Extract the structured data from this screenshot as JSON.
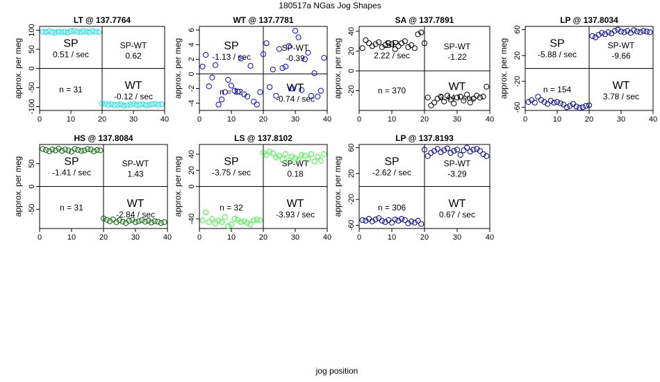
{
  "figure": {
    "title": "180517a   NGas Jog Shapes",
    "xlabel": "jog position",
    "ylabel": "approx. per meg"
  },
  "chart_data": [
    {
      "type": "scatter",
      "title": "LT @ 137.7764",
      "color": "#00e5ee",
      "xlim": [
        0,
        40
      ],
      "ylim": [
        -110,
        110
      ],
      "xticks": [
        0,
        10,
        20,
        30,
        40
      ],
      "yticks": [
        -100,
        -50,
        0,
        50,
        100
      ],
      "ytick_labels": [
        "-100",
        "-50",
        "0",
        "50",
        "100"
      ],
      "quadrants": {
        "sp": {
          "label": "SP",
          "rate": "0.51 / sec"
        },
        "spwt": {
          "label": "SP-WT",
          "value": "0.62"
        },
        "n": "n = 31",
        "wt": {
          "label": "WT",
          "rate": "-0.12 / sec"
        }
      },
      "x": [
        1,
        2,
        3,
        4,
        5,
        6,
        7,
        8,
        9,
        10,
        11,
        12,
        13,
        14,
        15,
        16,
        17,
        18,
        19,
        20,
        21,
        22,
        23,
        24,
        25,
        26,
        27,
        28,
        29,
        30,
        31,
        32,
        33,
        34,
        35,
        36,
        37,
        38,
        39
      ],
      "y": [
        96,
        95,
        97,
        95,
        94,
        96,
        95,
        96,
        94,
        97,
        98,
        96,
        95,
        97,
        96,
        95,
        97,
        96,
        95,
        -92,
        -93,
        -95,
        -94,
        -96,
        -95,
        -94,
        -97,
        -96,
        -95,
        -93,
        -96,
        -95,
        -94,
        -96,
        -95,
        -94,
        -93,
        -95,
        -94
      ]
    },
    {
      "type": "scatter",
      "title": "WT @ 137.7781",
      "color": "#0000ff",
      "xlim": [
        0,
        40
      ],
      "ylim": [
        -5,
        6.5
      ],
      "xticks": [
        0,
        10,
        20,
        30,
        40
      ],
      "yticks": [
        -4,
        -2,
        0,
        2,
        4,
        6
      ],
      "ytick_labels": [
        "-4",
        "-2",
        "0",
        "2",
        "4",
        "6"
      ],
      "quadrants": {
        "sp": {
          "label": "SP",
          "rate": "-1.13 / sec"
        },
        "spwt": {
          "label": "SP-WT",
          "value": "-0.39"
        },
        "n": "n = 32",
        "wt": {
          "label": "WT",
          "rate": "-0.74 / sec"
        }
      },
      "x": [
        1,
        2,
        3,
        4,
        5,
        6,
        7,
        8,
        9,
        10,
        11,
        12,
        13,
        14,
        15,
        16,
        17,
        18,
        19,
        20,
        21,
        22,
        23,
        24,
        25,
        26,
        27,
        28,
        29,
        30,
        31,
        32,
        33,
        34,
        35,
        36,
        37,
        38,
        39
      ],
      "y": [
        1.0,
        2.6,
        -1.7,
        -0.5,
        1.2,
        -4.2,
        -3.5,
        -2.5,
        -0.8,
        -1.6,
        -2.3,
        -2.4,
        2.1,
        -2.8,
        -3.1,
        1.1,
        -3.8,
        -4.2,
        -2.5,
        2.7,
        4.2,
        -1.8,
        0.6,
        -3.0,
        3.4,
        0.8,
        1.0,
        3.8,
        -2.0,
        5.9,
        5.0,
        -2.2,
        2.0,
        2.9,
        -3.0,
        0.1,
        -3.1,
        -2.3,
        2.2
      ]
    },
    {
      "type": "scatter",
      "title": "SA @ 137.7891",
      "color": "#000000",
      "xlim": [
        0,
        40
      ],
      "ylim": [
        -40,
        45
      ],
      "xticks": [
        0,
        10,
        20,
        30,
        40
      ],
      "yticks": [
        -20,
        0,
        20,
        40
      ],
      "ytick_labels": [
        "-20",
        "0",
        "20",
        "40"
      ],
      "quadrants": {
        "sp": {
          "label": "SP",
          "rate": "2.22 / sec"
        },
        "spwt": {
          "label": "SP-WT",
          "value": "-1.22"
        },
        "n": "n = 370",
        "wt": {
          "label": "WT",
          "rate": "3.44 / sec"
        }
      },
      "x": [
        1,
        2,
        3,
        4,
        5,
        6,
        7,
        8,
        9,
        10,
        11,
        12,
        13,
        14,
        15,
        16,
        17,
        18,
        19,
        20,
        21,
        22,
        23,
        24,
        25,
        26,
        27,
        28,
        29,
        30,
        31,
        32,
        33,
        34,
        35,
        36,
        37,
        38,
        39
      ],
      "y": [
        23,
        31,
        28,
        25,
        27,
        29,
        24,
        26,
        28,
        27,
        22,
        25,
        28,
        30,
        24,
        26,
        23,
        37,
        39,
        28,
        -27,
        -35,
        -32,
        -28,
        -26,
        -31,
        -25,
        -29,
        -33,
        -27,
        -26,
        -30,
        -24,
        -32,
        -28,
        -25,
        -27,
        -26,
        -16
      ]
    },
    {
      "type": "scatter",
      "title": "LP @ 137.8034",
      "color": "#000099",
      "xlim": [
        0,
        40
      ],
      "ylim": [
        -65,
        65
      ],
      "xticks": [
        0,
        10,
        20,
        30,
        40
      ],
      "yticks": [
        -60,
        -20,
        20,
        60
      ],
      "ytick_labels": [
        "-60",
        "-20",
        "20",
        "60"
      ],
      "quadrants": {
        "sp": {
          "label": "SP",
          "rate": "-5.88 / sec"
        },
        "spwt": {
          "label": "SP-WT",
          "value": "-9.66"
        },
        "n": "n = 154",
        "wt": {
          "label": "WT",
          "rate": "3.78 / sec"
        }
      },
      "x": [
        1,
        2,
        3,
        4,
        5,
        6,
        7,
        8,
        9,
        10,
        11,
        12,
        13,
        14,
        15,
        16,
        17,
        18,
        19,
        20,
        21,
        22,
        23,
        24,
        25,
        26,
        27,
        28,
        29,
        30,
        31,
        32,
        33,
        34,
        35,
        36,
        37,
        38,
        39
      ],
      "y": [
        -52,
        -49,
        -53,
        -44,
        -49,
        -52,
        -55,
        -50,
        -53,
        -52,
        -54,
        -56,
        -60,
        -58,
        -55,
        -59,
        -61,
        -60,
        -58,
        -57,
        50,
        48,
        52,
        55,
        53,
        56,
        54,
        58,
        60,
        57,
        56,
        58,
        55,
        59,
        57,
        56,
        58,
        57,
        56
      ]
    },
    {
      "type": "scatter",
      "title": "HS @ 137.8084",
      "color": "#006400",
      "xlim": [
        0,
        40
      ],
      "ylim": [
        -92,
        92
      ],
      "xticks": [
        0,
        10,
        20,
        30,
        40
      ],
      "yticks": [
        -50,
        0,
        50
      ],
      "ytick_labels": [
        "-50",
        "0",
        "50"
      ],
      "quadrants": {
        "sp": {
          "label": "SP",
          "rate": "-1.41 / sec"
        },
        "spwt": {
          "label": "SP-WT",
          "value": "1.43"
        },
        "n": "n = 31",
        "wt": {
          "label": "WT",
          "rate": "-2.84 / sec"
        }
      },
      "x": [
        1,
        2,
        3,
        4,
        5,
        6,
        7,
        8,
        9,
        10,
        11,
        12,
        13,
        14,
        15,
        16,
        17,
        18,
        19,
        20,
        21,
        22,
        23,
        24,
        25,
        26,
        27,
        28,
        29,
        30,
        31,
        32,
        33,
        34,
        35,
        36,
        37,
        38,
        39
      ],
      "y": [
        82,
        80,
        77,
        81,
        79,
        83,
        78,
        81,
        79,
        76,
        82,
        80,
        78,
        79,
        82,
        81,
        77,
        80,
        79,
        -70,
        -73,
        -76,
        -72,
        -78,
        -74,
        -77,
        -80,
        -75,
        -73,
        -78,
        -76,
        -74,
        -77,
        -75,
        -79,
        -76,
        -77,
        -80,
        -78
      ]
    },
    {
      "type": "scatter",
      "title": "LS @ 137.8102",
      "color": "#33ff33",
      "xlim": [
        0,
        40
      ],
      "ylim": [
        -52,
        52
      ],
      "xticks": [
        0,
        10,
        20,
        30,
        40
      ],
      "yticks": [
        -40,
        0,
        20,
        40
      ],
      "ytick_labels": [
        "-40",
        "0",
        "20",
        "40"
      ],
      "quadrants": {
        "sp": {
          "label": "SP",
          "rate": "-3.75 / sec"
        },
        "spwt": {
          "label": "SP-WT",
          "value": "0.18"
        },
        "n": "n = 32",
        "wt": {
          "label": "WT",
          "rate": "-3.93 / sec"
        }
      },
      "x": [
        1,
        2,
        3,
        4,
        5,
        6,
        7,
        8,
        9,
        10,
        11,
        12,
        13,
        14,
        15,
        16,
        17,
        18,
        19,
        20,
        21,
        22,
        23,
        24,
        25,
        26,
        27,
        28,
        29,
        30,
        31,
        32,
        33,
        34,
        35,
        36,
        37,
        38,
        39
      ],
      "y": [
        -42,
        -32,
        -44,
        -40,
        -46,
        -42,
        -44,
        -38,
        -49,
        -47,
        -40,
        -41,
        -44,
        -43,
        -45,
        -47,
        -42,
        -41,
        -42,
        42,
        39,
        43,
        41,
        36,
        38,
        34,
        40,
        32,
        37,
        35,
        33,
        39,
        38,
        34,
        40,
        31,
        37,
        32,
        40
      ]
    },
    {
      "type": "scatter",
      "title": "LP @ 137.8193",
      "color": "#000099",
      "xlim": [
        0,
        40
      ],
      "ylim": [
        -65,
        65
      ],
      "xticks": [
        0,
        10,
        20,
        30,
        40
      ],
      "yticks": [
        -60,
        -20,
        20,
        60
      ],
      "ytick_labels": [
        "-60",
        "-20",
        "20",
        "60"
      ],
      "quadrants": {
        "sp": {
          "label": "SP",
          "rate": "-2.62 / sec"
        },
        "spwt": {
          "label": "SP-WT",
          "value": "-3.29"
        },
        "n": "n = 306",
        "wt": {
          "label": "WT",
          "rate": "0.67 / sec"
        }
      },
      "x": [
        1,
        2,
        3,
        4,
        5,
        6,
        7,
        8,
        9,
        10,
        11,
        12,
        13,
        14,
        15,
        16,
        17,
        18,
        19,
        20,
        21,
        22,
        23,
        24,
        25,
        26,
        27,
        28,
        29,
        30,
        31,
        32,
        33,
        34,
        35,
        36,
        37,
        38,
        39
      ],
      "y": [
        -52,
        -53,
        -50,
        -54,
        -51,
        -49,
        -53,
        -55,
        -52,
        -56,
        -51,
        -53,
        -50,
        -52,
        -57,
        -54,
        -56,
        -53,
        -58,
        57,
        47,
        52,
        55,
        58,
        53,
        56,
        59,
        52,
        55,
        57,
        49,
        56,
        60,
        54,
        57,
        58,
        55,
        50,
        47
      ]
    }
  ]
}
